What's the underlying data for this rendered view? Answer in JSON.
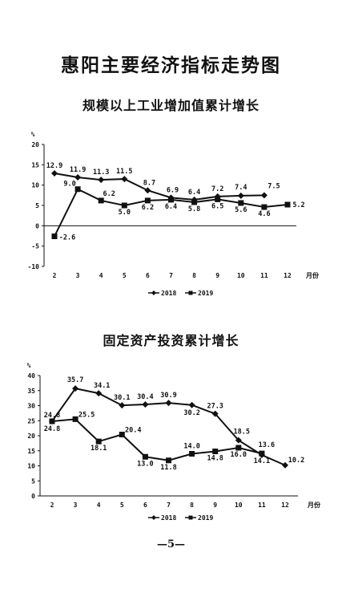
{
  "page": {
    "title": "惠阳主要经济指标走势图",
    "page_number": "—5—"
  },
  "chart_data": [
    {
      "type": "line",
      "title": "规模以上工业增加值累计增长",
      "ylabel": "%",
      "xlabel_unit": "月份",
      "x": [
        2,
        3,
        4,
        5,
        6,
        7,
        8,
        9,
        10,
        11,
        12
      ],
      "ylim": [
        -10,
        20
      ],
      "yticks": [
        -10,
        -5,
        0,
        5,
        10,
        15,
        20
      ],
      "ytick_labels": [
        "-10",
        "-5",
        "0",
        "5",
        "10",
        "15",
        "20"
      ],
      "series": [
        {
          "name": "2018",
          "marker": "diamond",
          "values": [
            12.9,
            11.9,
            11.3,
            11.5,
            8.7,
            6.9,
            6.4,
            7.2,
            7.4,
            7.5,
            null
          ],
          "labels": [
            "12.9",
            "11.9",
            "11.3",
            "11.5",
            "8.7",
            "6.9",
            "6.4",
            "7.2",
            "7.4",
            "7.5",
            ""
          ]
        },
        {
          "name": "2019",
          "marker": "square",
          "values": [
            -2.6,
            9.0,
            6.2,
            5.0,
            6.2,
            6.4,
            5.8,
            6.5,
            5.6,
            4.6,
            5.2
          ],
          "labels": [
            "-2.6",
            "9.0",
            "6.2",
            "5.0",
            "6.2",
            "6.4",
            "5.8",
            "6.5",
            "5.6",
            "4.6",
            "5.2"
          ]
        }
      ],
      "grid": false,
      "legend": "bottom"
    },
    {
      "type": "line",
      "title": "固定资产投资累计增长",
      "ylabel": "%",
      "xlabel_unit": "月份",
      "x": [
        2,
        3,
        4,
        5,
        6,
        7,
        8,
        9,
        10,
        11,
        12
      ],
      "ylim": [
        0,
        40
      ],
      "yticks": [
        0,
        5,
        10,
        15,
        20,
        25,
        30,
        35,
        40
      ],
      "ytick_labels": [
        "0",
        "5",
        "10",
        "15",
        "20",
        "25",
        "30",
        "35",
        "40"
      ],
      "series": [
        {
          "name": "2018",
          "marker": "diamond",
          "values": [
            24.8,
            35.7,
            34.1,
            30.1,
            30.4,
            30.9,
            30.2,
            27.3,
            18.5,
            13.6,
            10.2
          ],
          "labels": [
            "24.8",
            "35.7",
            "34.1",
            "30.1",
            "30.4",
            "30.9",
            "30.2",
            "27.3",
            "18.5",
            "13.6",
            "10.2"
          ]
        },
        {
          "name": "2019",
          "marker": "square",
          "values": [
            24.8,
            25.5,
            18.1,
            20.4,
            13.0,
            11.8,
            14.0,
            14.8,
            16.0,
            14.1,
            null
          ],
          "labels": [
            "24.8",
            "25.5",
            "18.1",
            "20.4",
            "13.0",
            "11.8",
            "14.0",
            "14.8",
            "16.0",
            "14.1",
            ""
          ]
        }
      ],
      "grid": false,
      "legend": "bottom"
    }
  ]
}
